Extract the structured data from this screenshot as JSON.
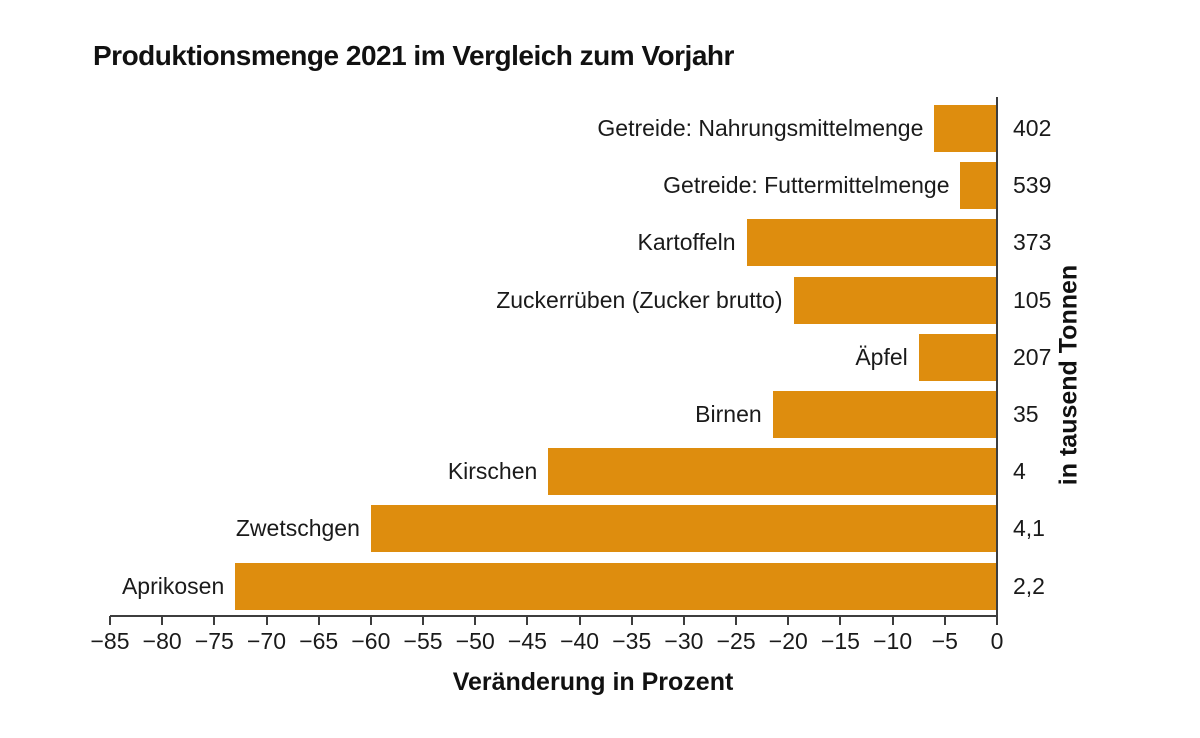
{
  "title": "Produktionsmenge 2021 im Vergleich zum Vorjahr",
  "chart_data": {
    "type": "bar",
    "orientation": "horizontal",
    "title": "Produktionsmenge 2021 im Vergleich zum Vorjahr",
    "categories": [
      "Getreide: Nahrungsmittelmenge",
      "Getreide: Futtermittelmenge",
      "Kartoffeln",
      "Zuckerrüben (Zucker brutto)",
      "Äpfel",
      "Birnen",
      "Kirschen",
      "Zwetschgen",
      "Aprikosen"
    ],
    "values": [
      -6,
      -3.5,
      -24,
      -19.5,
      -7.5,
      -21.5,
      -43,
      -60,
      -73
    ],
    "value_labels": [
      "402",
      "539",
      "373",
      "105",
      "207",
      "35",
      "4",
      "4,1",
      "2,2"
    ],
    "xlabel": "Veränderung in Prozent",
    "right_axis_label": "in tausend Tonnen",
    "xlim": [
      -85,
      0
    ],
    "x_ticks": [
      -85,
      -80,
      -75,
      -70,
      -65,
      -60,
      -55,
      -50,
      -45,
      -40,
      -35,
      -30,
      -25,
      -20,
      -15,
      -10,
      -5,
      0
    ],
    "x_tick_labels": [
      "−85",
      "−80",
      "−75",
      "−70",
      "−65",
      "−60",
      "−55",
      "−50",
      "−45",
      "−40",
      "−35",
      "−30",
      "−25",
      "−20",
      "−15",
      "−10",
      "−5",
      "0"
    ],
    "grid": false,
    "legend": null,
    "bar_color": "#DE8D0E",
    "axis_color": "#3D3D3D",
    "text_color": "#1A1A1A"
  }
}
